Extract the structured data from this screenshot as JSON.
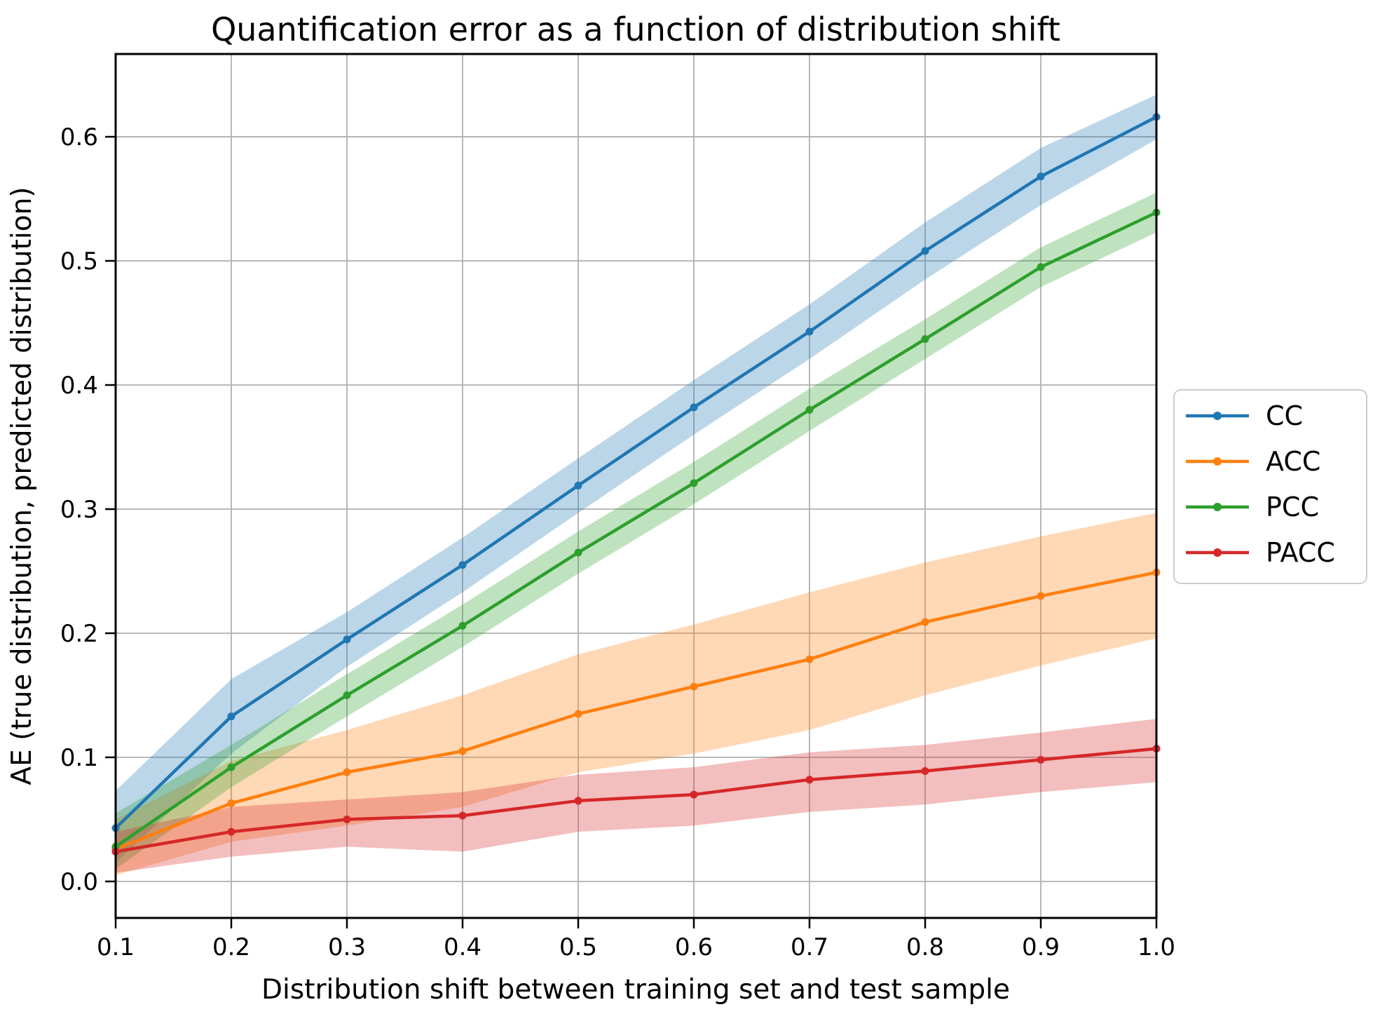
{
  "chart_data": {
    "type": "line",
    "title": "Quantification error as a function of distribution shift",
    "xlabel": "Distribution shift between training set and test sample",
    "ylabel": "AE (true distribution, predicted distribution)",
    "x": [
      0.1,
      0.2,
      0.3,
      0.4,
      0.5,
      0.6,
      0.7,
      0.8,
      0.9,
      1.0
    ],
    "x_tick_labels": [
      "0.1",
      "0.2",
      "0.3",
      "0.4",
      "0.5",
      "0.6",
      "0.7",
      "0.8",
      "0.9",
      "1.0"
    ],
    "y_ticks": [
      0.0,
      0.1,
      0.2,
      0.3,
      0.4,
      0.5,
      0.6
    ],
    "y_tick_labels": [
      "0.0",
      "0.1",
      "0.2",
      "0.3",
      "0.4",
      "0.5",
      "0.6"
    ],
    "xlim": [
      0.1,
      1.0
    ],
    "ylim": [
      -0.0294,
      0.6667
    ],
    "grid": true,
    "legend_position": "outside-right",
    "band_style": "shaded confidence band, fill same color as line, alpha ~0.3",
    "series": [
      {
        "name": "CC",
        "color": "#1f77b4",
        "values": [
          0.043,
          0.133,
          0.195,
          0.255,
          0.319,
          0.382,
          0.443,
          0.508,
          0.568,
          0.616
        ],
        "band_upper": [
          0.073,
          0.163,
          0.217,
          0.277,
          0.341,
          0.404,
          0.465,
          0.531,
          0.591,
          0.634
        ],
        "band_lower": [
          0.015,
          0.103,
          0.173,
          0.233,
          0.297,
          0.36,
          0.421,
          0.485,
          0.545,
          0.598
        ]
      },
      {
        "name": "ACC",
        "color": "#ff7f0e",
        "values": [
          0.026,
          0.063,
          0.088,
          0.105,
          0.135,
          0.157,
          0.179,
          0.209,
          0.23,
          0.249
        ],
        "band_upper": [
          0.05,
          0.097,
          0.122,
          0.15,
          0.183,
          0.207,
          0.233,
          0.257,
          0.278,
          0.297
        ],
        "band_lower": [
          0.005,
          0.032,
          0.045,
          0.06,
          0.088,
          0.103,
          0.122,
          0.15,
          0.174,
          0.196
        ]
      },
      {
        "name": "PCC",
        "color": "#2ca02c",
        "values": [
          0.028,
          0.092,
          0.15,
          0.206,
          0.265,
          0.321,
          0.38,
          0.437,
          0.495,
          0.539
        ],
        "band_upper": [
          0.055,
          0.11,
          0.167,
          0.223,
          0.282,
          0.338,
          0.397,
          0.453,
          0.511,
          0.555
        ],
        "band_lower": [
          0.01,
          0.076,
          0.133,
          0.189,
          0.248,
          0.304,
          0.363,
          0.421,
          0.479,
          0.523
        ]
      },
      {
        "name": "PACC",
        "color": "#d62728",
        "values": [
          0.024,
          0.04,
          0.05,
          0.053,
          0.065,
          0.07,
          0.082,
          0.089,
          0.098,
          0.107
        ],
        "band_upper": [
          0.04,
          0.06,
          0.066,
          0.072,
          0.086,
          0.092,
          0.104,
          0.11,
          0.12,
          0.131
        ],
        "band_lower": [
          0.007,
          0.02,
          0.028,
          0.024,
          0.04,
          0.045,
          0.056,
          0.062,
          0.072,
          0.08
        ]
      }
    ]
  },
  "colors": {
    "background": "#ffffff",
    "grid": "#b0b0b0",
    "spine": "#000000",
    "text": "#000000",
    "legend_border": "#cccccc",
    "legend_background": "#ffffff"
  }
}
